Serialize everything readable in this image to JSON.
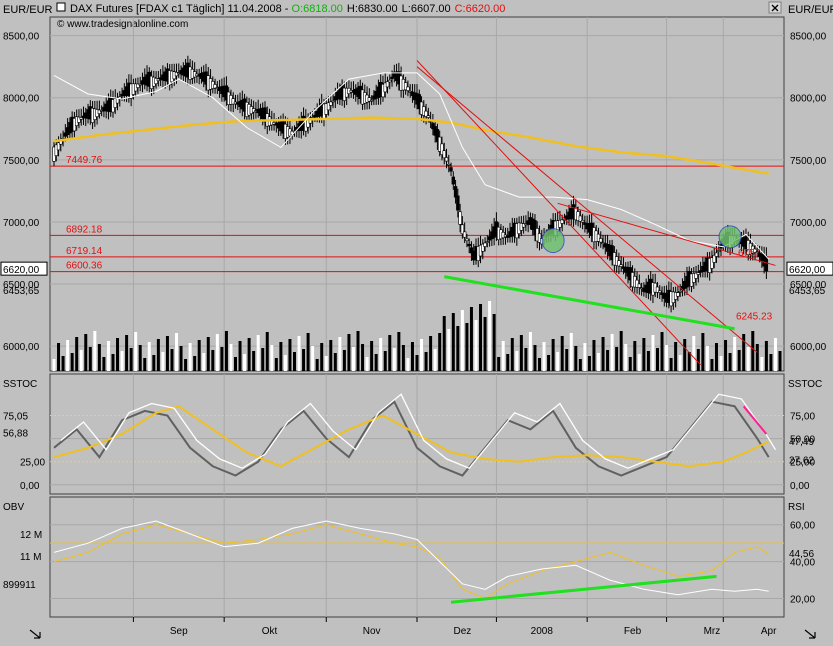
{
  "header": {
    "left_label": "EUR/EUR",
    "right_label": "EUR/EUR",
    "title_prefix": "DAX Futures [FDAX c1  Täglich] 11.04.2008 - ",
    "open": "O:6818.00",
    "high": "H:6830.00",
    "low": "L:6607.00",
    "close": "C:6620.00",
    "copyright": "© www.tradesignalonline.com",
    "close_icon": "x-icon"
  },
  "colors": {
    "background": "#c0c0c0",
    "candle": "#000000",
    "moving_average": "#f0c020",
    "white_line": "#ffffff",
    "support_line": "#20e020",
    "resistance": "#e01010",
    "circle": "#70c070",
    "arrow": "#ff2090"
  },
  "chart_data": [
    {
      "type": "candlestick",
      "panel": "price",
      "ylim": [
        5800,
        8650
      ],
      "y_ticks": [
        "8500,00",
        "8000,00",
        "7500,00",
        "7000,00",
        "6500,00",
        "6000,00"
      ],
      "y_tick_values": [
        8500,
        8000,
        7500,
        7000,
        6500,
        6000
      ],
      "x_labels": [
        "Sep",
        "Okt",
        "Nov",
        "Dez",
        "2008",
        "Feb",
        "Mrz",
        "Apr"
      ],
      "left_markers": [
        {
          "label": "6620,00",
          "value": 6620,
          "boxed": true
        },
        {
          "label": "6453,65",
          "value": 6453
        }
      ],
      "right_markers": [
        {
          "label": "6620,00",
          "value": 6620,
          "boxed": true
        },
        {
          "label": "6453,65",
          "value": 6453
        }
      ],
      "horizontal_levels": [
        {
          "label": "7449.76",
          "value": 7449.76
        },
        {
          "label": "6892.18",
          "value": 6892.18
        },
        {
          "label": "6719.14",
          "value": 6719.14
        },
        {
          "label": "6600.36",
          "value": 6600.36
        }
      ],
      "annotations": [
        {
          "label": "6757",
          "value": 6757
        },
        {
          "label": "6245.23",
          "value": 6245.23
        }
      ],
      "close_path": [
        [
          0,
          7560
        ],
        [
          5,
          7700
        ],
        [
          10,
          7820
        ],
        [
          15,
          7860
        ],
        [
          20,
          7890
        ],
        [
          25,
          7930
        ],
        [
          30,
          8020
        ],
        [
          35,
          8080
        ],
        [
          40,
          8130
        ],
        [
          45,
          8140
        ],
        [
          50,
          8170
        ],
        [
          55,
          8200
        ],
        [
          60,
          8210
        ],
        [
          65,
          8170
        ],
        [
          70,
          8110
        ],
        [
          75,
          8040
        ],
        [
          80,
          7960
        ],
        [
          85,
          7920
        ],
        [
          90,
          7890
        ],
        [
          95,
          7820
        ],
        [
          100,
          7760
        ],
        [
          105,
          7720
        ],
        [
          110,
          7780
        ],
        [
          115,
          7850
        ],
        [
          120,
          7920
        ],
        [
          125,
          8010
        ],
        [
          130,
          8060
        ],
        [
          135,
          8030
        ],
        [
          140,
          7980
        ],
        [
          145,
          8070
        ],
        [
          150,
          8180
        ],
        [
          155,
          8100
        ],
        [
          160,
          7980
        ],
        [
          165,
          7850
        ],
        [
          170,
          7640
        ],
        [
          175,
          7420
        ],
        [
          180,
          6950
        ],
        [
          185,
          6720
        ],
        [
          190,
          6820
        ],
        [
          195,
          6930
        ],
        [
          200,
          6880
        ],
        [
          205,
          6960
        ],
        [
          210,
          7000
        ],
        [
          215,
          6850
        ],
        [
          220,
          6950
        ],
        [
          225,
          7020
        ],
        [
          230,
          7080
        ],
        [
          235,
          6960
        ],
        [
          240,
          6880
        ],
        [
          245,
          6760
        ],
        [
          250,
          6650
        ],
        [
          255,
          6550
        ],
        [
          260,
          6450
        ],
        [
          265,
          6480
        ],
        [
          270,
          6380
        ],
        [
          275,
          6420
        ],
        [
          280,
          6530
        ],
        [
          285,
          6600
        ],
        [
          290,
          6680
        ],
        [
          295,
          6830
        ],
        [
          300,
          6870
        ],
        [
          305,
          6820
        ],
        [
          310,
          6760
        ],
        [
          315,
          6620
        ]
      ],
      "series": [
        {
          "type": "line",
          "values": [
            [
              0,
              7650
            ],
            [
              20,
              7700
            ],
            [
              40,
              7740
            ],
            [
              60,
              7780
            ],
            [
              80,
              7810
            ],
            [
              100,
              7820
            ],
            [
              120,
              7830
            ],
            [
              140,
              7840
            ],
            [
              160,
              7830
            ],
            [
              175,
              7800
            ],
            [
              190,
              7740
            ],
            [
              210,
              7680
            ],
            [
              230,
              7610
            ],
            [
              250,
              7560
            ],
            [
              270,
              7530
            ],
            [
              290,
              7470
            ],
            [
              305,
              7420
            ],
            [
              315,
              7390
            ]
          ]
        },
        {
          "type": "line",
          "values": [
            [
              0,
              8180
            ],
            [
              15,
              8030
            ],
            [
              30,
              7990
            ],
            [
              45,
              8050
            ],
            [
              55,
              8150
            ],
            [
              70,
              8000
            ],
            [
              85,
              7760
            ],
            [
              100,
              7600
            ],
            [
              115,
              7900
            ],
            [
              130,
              8150
            ],
            [
              145,
              8200
            ],
            [
              160,
              8200
            ],
            [
              170,
              8030
            ],
            [
              180,
              7600
            ],
            [
              190,
              7300
            ],
            [
              205,
              7200
            ],
            [
              220,
              7200
            ],
            [
              235,
              7180
            ],
            [
              250,
              7100
            ],
            [
              265,
              6980
            ],
            [
              280,
              6850
            ],
            [
              295,
              6800
            ],
            [
              305,
              6900
            ],
            [
              315,
              6700
            ]
          ]
        }
      ]
    },
    {
      "type": "line",
      "panel": "SSTOC",
      "label": "SSTOC",
      "ylim": [
        -10,
        120
      ],
      "y_ticks": [
        "75,00",
        "50,00",
        "25,00",
        "0,00"
      ],
      "y_tick_values": [
        75,
        50,
        25,
        0
      ],
      "left_markers": [
        {
          "label": "75,05",
          "value": 75.05
        },
        {
          "label": "56,88",
          "value": 56.88
        }
      ],
      "right_markers": [
        {
          "label": "47,49",
          "value": 47.49
        },
        {
          "label": "27,62",
          "value": 27.62
        }
      ],
      "series": [
        {
          "values": [
            [
              0,
              40
            ],
            [
              10,
              60
            ],
            [
              20,
              30
            ],
            [
              30,
              70
            ],
            [
              40,
              80
            ],
            [
              50,
              75
            ],
            [
              60,
              40
            ],
            [
              70,
              20
            ],
            [
              80,
              10
            ],
            [
              90,
              25
            ],
            [
              100,
              60
            ],
            [
              110,
              80
            ],
            [
              120,
              50
            ],
            [
              130,
              30
            ],
            [
              140,
              70
            ],
            [
              150,
              90
            ],
            [
              160,
              40
            ],
            [
              170,
              20
            ],
            [
              180,
              10
            ],
            [
              190,
              40
            ],
            [
              200,
              70
            ],
            [
              210,
              60
            ],
            [
              220,
              80
            ],
            [
              230,
              40
            ],
            [
              240,
              20
            ],
            [
              250,
              10
            ],
            [
              260,
              20
            ],
            [
              270,
              30
            ],
            [
              280,
              60
            ],
            [
              290,
              90
            ],
            [
              300,
              85
            ],
            [
              310,
              50
            ],
            [
              315,
              30
            ]
          ]
        },
        {
          "values": [
            [
              0,
              30
            ],
            [
              15,
              40
            ],
            [
              30,
              55
            ],
            [
              45,
              78
            ],
            [
              55,
              85
            ],
            [
              70,
              60
            ],
            [
              85,
              35
            ],
            [
              100,
              20
            ],
            [
              115,
              40
            ],
            [
              130,
              60
            ],
            [
              145,
              75
            ],
            [
              160,
              55
            ],
            [
              175,
              35
            ],
            [
              190,
              28
            ],
            [
              205,
              25
            ],
            [
              220,
              30
            ],
            [
              235,
              32
            ],
            [
              250,
              30
            ],
            [
              265,
              25
            ],
            [
              280,
              20
            ],
            [
              295,
              25
            ],
            [
              305,
              35
            ],
            [
              315,
              47
            ]
          ]
        }
      ]
    },
    {
      "type": "line",
      "panel": "OBV-RSI",
      "label": "OBV",
      "right_label": "RSI",
      "ylim": [
        10,
        75
      ],
      "left_ticks": [
        "12 M",
        "11 M"
      ],
      "left_tick_values": [
        55,
        43
      ],
      "y_ticks": [
        "60,00",
        "40,00",
        "20,00"
      ],
      "y_tick_values": [
        60,
        40,
        20
      ],
      "left_markers": [
        {
          "label": "899911",
          "value": 28
        }
      ],
      "right_markers": [
        {
          "label": "44,56",
          "value": 44.56
        }
      ],
      "series": [
        {
          "values": [
            [
              0,
              40
            ],
            [
              15,
              45
            ],
            [
              30,
              55
            ],
            [
              45,
              60
            ],
            [
              60,
              55
            ],
            [
              75,
              50
            ],
            [
              90,
              52
            ],
            [
              105,
              55
            ],
            [
              120,
              60
            ],
            [
              135,
              55
            ],
            [
              150,
              50
            ],
            [
              160,
              48
            ],
            [
              170,
              42
            ],
            [
              180,
              25
            ],
            [
              190,
              20
            ],
            [
              200,
              28
            ],
            [
              215,
              35
            ],
            [
              230,
              40
            ],
            [
              245,
              45
            ],
            [
              260,
              38
            ],
            [
              275,
              32
            ],
            [
              290,
              35
            ],
            [
              300,
              45
            ],
            [
              310,
              48
            ],
            [
              315,
              44
            ]
          ]
        },
        {
          "values": [
            [
              0,
              45
            ],
            [
              15,
              50
            ],
            [
              30,
              58
            ],
            [
              45,
              62
            ],
            [
              60,
              55
            ],
            [
              75,
              48
            ],
            [
              90,
              50
            ],
            [
              105,
              58
            ],
            [
              120,
              62
            ],
            [
              135,
              58
            ],
            [
              150,
              55
            ],
            [
              160,
              52
            ],
            [
              170,
              40
            ],
            [
              180,
              28
            ],
            [
              190,
              25
            ],
            [
              200,
              32
            ],
            [
              215,
              36
            ],
            [
              230,
              38
            ],
            [
              245,
              30
            ],
            [
              260,
              25
            ],
            [
              275,
              22
            ],
            [
              290,
              25
            ],
            [
              300,
              24
            ],
            [
              310,
              25
            ],
            [
              315,
              24
            ]
          ]
        }
      ]
    }
  ]
}
